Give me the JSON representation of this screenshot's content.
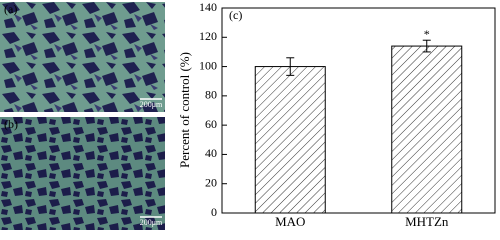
{
  "panels": [
    {
      "label": "(a)",
      "scale_bar": "200μm"
    },
    {
      "label": "(b)",
      "scale_bar": "200μm"
    }
  ],
  "chart_data": {
    "type": "bar",
    "panel_label": "(c)",
    "ylabel": "Percent of control (%)",
    "categories": [
      "MAO",
      "MHTZn"
    ],
    "values": [
      100,
      114
    ],
    "errors": [
      6,
      4
    ],
    "color": "#000000",
    "annotations": [
      {
        "category": "MHTZn",
        "text": "*"
      }
    ],
    "ylim": [
      0,
      140
    ],
    "yticks": [
      0,
      20,
      40,
      60,
      80,
      100,
      120,
      140
    ]
  }
}
